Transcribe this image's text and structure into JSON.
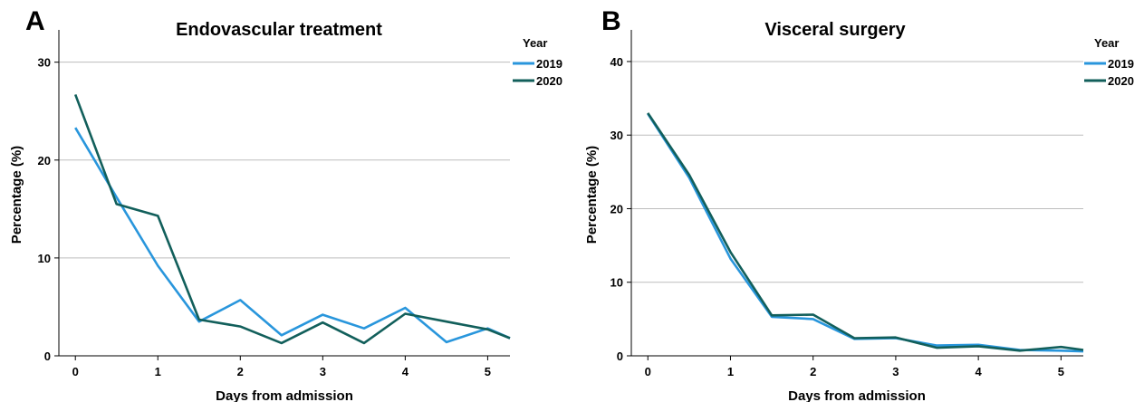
{
  "colors": {
    "series_2019": "#2996dc",
    "series_2020": "#125f5b"
  },
  "chart_data": [
    {
      "panel": "A",
      "type": "line",
      "title": "Endovascular treatment",
      "xlabel": "Days from admission",
      "ylabel": "Percentage (%)",
      "xlim": [
        -0.2,
        5.27
      ],
      "ylim": [
        0,
        33.3
      ],
      "xticks": [
        0,
        1,
        2,
        3,
        4,
        5
      ],
      "yticks": [
        0,
        10,
        20,
        30
      ],
      "grid": true,
      "legend": {
        "title": "Year",
        "position": "top-right"
      },
      "series": [
        {
          "name": "2019",
          "color": "#2996dc",
          "x": [
            0,
            0.5,
            1,
            1.5,
            2,
            2.5,
            3,
            3.5,
            4,
            4.5,
            5,
            5.27
          ],
          "y": [
            23.3,
            16.2,
            9.2,
            3.5,
            5.7,
            2.1,
            4.2,
            2.8,
            4.9,
            1.4,
            2.8,
            1.8
          ]
        },
        {
          "name": "2020",
          "color": "#125f5b",
          "x": [
            0,
            0.5,
            1,
            1.5,
            2,
            2.5,
            3,
            3.5,
            4,
            4.5,
            5,
            5.27
          ],
          "y": [
            26.7,
            15.5,
            14.3,
            3.7,
            3.0,
            1.3,
            3.4,
            1.3,
            4.3,
            3.5,
            2.7,
            1.8
          ]
        }
      ]
    },
    {
      "panel": "B",
      "type": "line",
      "title": "Visceral surgery",
      "xlabel": "Days from admission",
      "ylabel": "Percentage (%)",
      "xlim": [
        -0.2,
        5.27
      ],
      "ylim": [
        0,
        44.3
      ],
      "xticks": [
        0,
        1,
        2,
        3,
        4,
        5
      ],
      "yticks": [
        0,
        10,
        20,
        30,
        40
      ],
      "grid": true,
      "legend": {
        "title": "Year",
        "position": "top-right"
      },
      "series": [
        {
          "name": "2019",
          "color": "#2996dc",
          "x": [
            0,
            0.5,
            1,
            1.5,
            2,
            2.5,
            3,
            3.5,
            4,
            4.5,
            5,
            5.27
          ],
          "y": [
            32.9,
            24.2,
            13.2,
            5.3,
            5.0,
            2.3,
            2.4,
            1.4,
            1.5,
            0.8,
            0.7,
            0.6
          ]
        },
        {
          "name": "2020",
          "color": "#125f5b",
          "x": [
            0,
            0.5,
            1,
            1.5,
            2,
            2.5,
            3,
            3.5,
            4,
            4.5,
            5,
            5.27
          ],
          "y": [
            33.0,
            24.6,
            14.1,
            5.5,
            5.6,
            2.4,
            2.5,
            1.1,
            1.3,
            0.7,
            1.2,
            0.8
          ]
        }
      ]
    }
  ]
}
